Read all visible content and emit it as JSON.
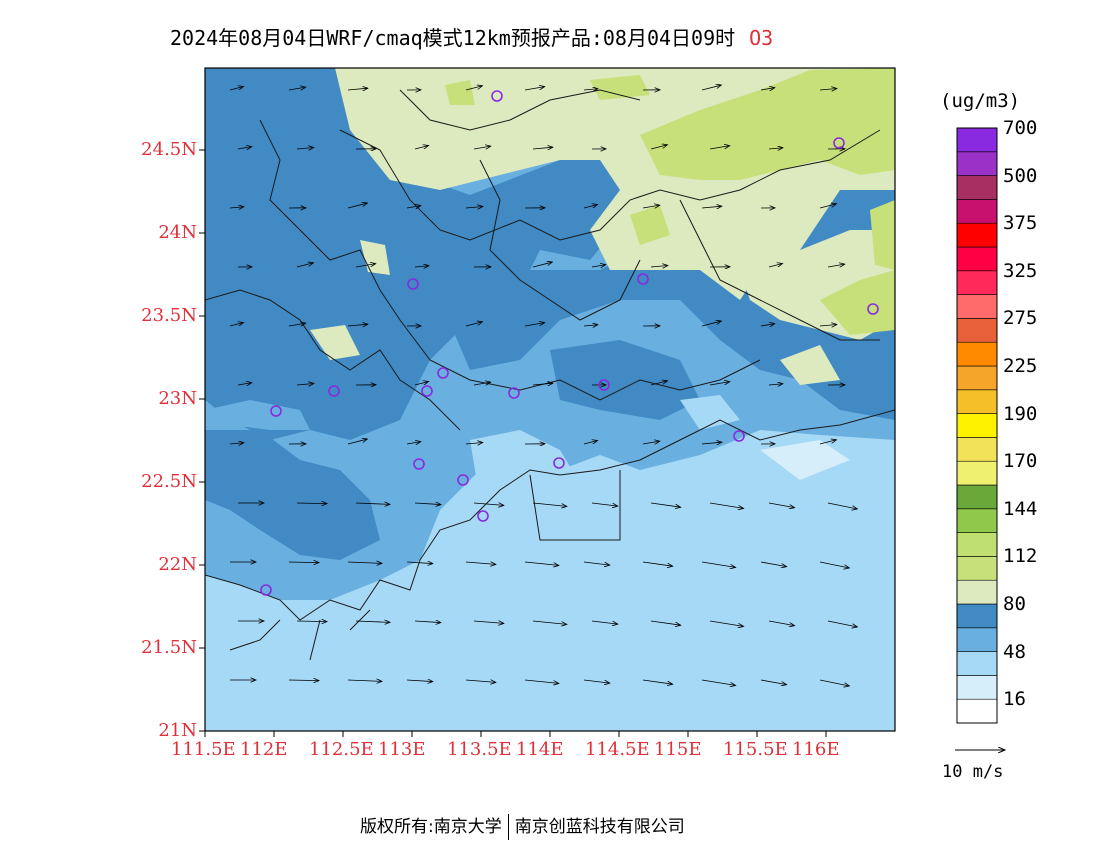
{
  "title": {
    "main": "2024年08月04日WRF/cmaq模式12km预报产品:08月04日09时",
    "species": "O3"
  },
  "colorbar": {
    "unit": "(ug/m3)",
    "bins": [
      {
        "color": "#ffffff"
      },
      {
        "color": "#d6edfa"
      },
      {
        "color": "#a5d9f5"
      },
      {
        "color": "#69afe0"
      },
      {
        "color": "#418ac4"
      },
      {
        "color": "#dde9bf"
      },
      {
        "color": "#c7e07a"
      },
      {
        "color": "#bfe070"
      },
      {
        "color": "#90c84c"
      },
      {
        "color": "#6aa83a"
      },
      {
        "color": "#f0f070"
      },
      {
        "color": "#f2e25a"
      },
      {
        "color": "#fff200"
      },
      {
        "color": "#f5bf2a"
      },
      {
        "color": "#f5a62a"
      },
      {
        "color": "#ff8a00"
      },
      {
        "color": "#e8603a"
      },
      {
        "color": "#ff6a6a"
      },
      {
        "color": "#ff2a5a"
      },
      {
        "color": "#ff0044"
      },
      {
        "color": "#ff0000"
      },
      {
        "color": "#c8106e"
      },
      {
        "color": "#a83060"
      },
      {
        "color": "#9a32c8"
      },
      {
        "color": "#8a2ae0"
      }
    ],
    "labels": [
      "16",
      "48",
      "80",
      "112",
      "144",
      "170",
      "190",
      "225",
      "275",
      "325",
      "375",
      "500",
      "700"
    ]
  },
  "axes": {
    "lat_labels": [
      "21N",
      "21.5N",
      "22N",
      "22.5N",
      "23N",
      "23.5N",
      "24N",
      "24.5N"
    ],
    "lon_labels": [
      "111.5E",
      "112E",
      "112.5E",
      "113E",
      "113.5E",
      "114E",
      "114.5E",
      "115E",
      "115.5E",
      "116E"
    ]
  },
  "wind_reference": {
    "label": "10 m/s"
  },
  "stations_count": 17,
  "footer": {
    "left": "版权所有:南京大学",
    "right": "南京创蓝科技有限公司"
  },
  "colors": {
    "axis_label": "#e0303a",
    "station": "#8a2ae0",
    "boundary": "#1a1a1a"
  }
}
